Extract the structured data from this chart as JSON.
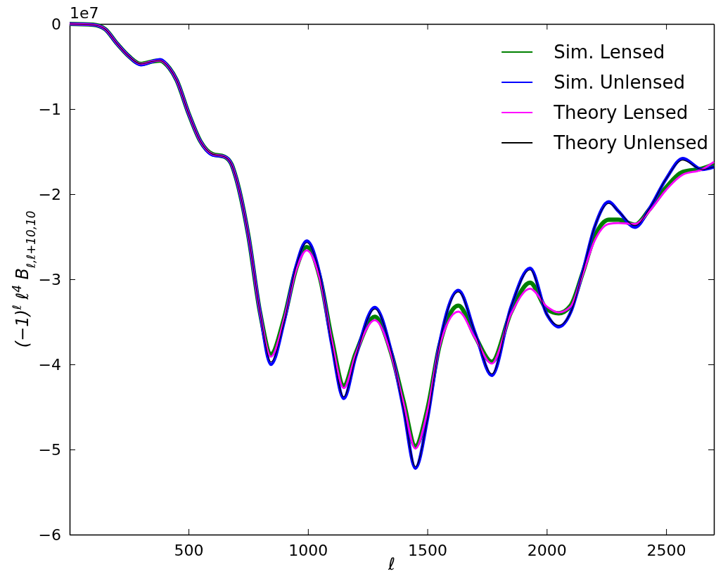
{
  "chart_data": {
    "type": "line",
    "xlabel": "ℓ",
    "ylabel": "(−1)$^{ℓ}$ ℓ$^{4}$ B$_{ℓ,ℓ+10,10}$",
    "annotations": [
      "1e7"
    ],
    "x": [
      2,
      100,
      150,
      200,
      250,
      300,
      350,
      380,
      420,
      450,
      500,
      550,
      600,
      650,
      680,
      700,
      750,
      800,
      845,
      900,
      950,
      995,
      1050,
      1100,
      1150,
      1200,
      1280,
      1350,
      1400,
      1450,
      1500,
      1550,
      1630,
      1700,
      1770,
      1850,
      1930,
      2000,
      2050,
      2100,
      2150,
      2200,
      2260,
      2300,
      2370,
      2430,
      2500,
      2570,
      2650,
      2700
    ],
    "series": [
      {
        "name": "Sim. Lensed",
        "color": "#008000",
        "values": [
          0,
          -0.01,
          -0.06,
          -0.23,
          -0.38,
          -0.47,
          -0.44,
          -0.43,
          -0.52,
          -0.66,
          -1.05,
          -1.38,
          -1.53,
          -1.56,
          -1.65,
          -1.82,
          -2.48,
          -3.4,
          -3.88,
          -3.46,
          -2.88,
          -2.62,
          -2.98,
          -3.7,
          -4.25,
          -3.87,
          -3.44,
          -3.88,
          -4.43,
          -4.96,
          -4.53,
          -3.79,
          -3.31,
          -3.67,
          -3.97,
          -3.39,
          -3.04,
          -3.35,
          -3.4,
          -3.31,
          -2.93,
          -2.5,
          -2.3,
          -2.3,
          -2.36,
          -2.18,
          -1.92,
          -1.74,
          -1.7,
          -1.65
        ]
      },
      {
        "name": "Sim. Unlensed",
        "color": "#0000ff",
        "values": [
          0,
          -0.01,
          -0.06,
          -0.23,
          -0.38,
          -0.48,
          -0.44,
          -0.42,
          -0.52,
          -0.66,
          -1.05,
          -1.38,
          -1.54,
          -1.56,
          -1.65,
          -1.82,
          -2.48,
          -3.4,
          -4.0,
          -3.5,
          -2.85,
          -2.55,
          -2.95,
          -3.77,
          -4.4,
          -3.91,
          -3.33,
          -3.86,
          -4.52,
          -5.22,
          -4.65,
          -3.77,
          -3.13,
          -3.63,
          -4.13,
          -3.33,
          -2.87,
          -3.41,
          -3.56,
          -3.39,
          -2.92,
          -2.39,
          -2.09,
          -2.2,
          -2.39,
          -2.17,
          -1.82,
          -1.58,
          -1.71,
          -1.68
        ]
      },
      {
        "name": "Theory Lensed",
        "color": "#ff00ff",
        "values": [
          0,
          -0.01,
          -0.06,
          -0.23,
          -0.38,
          -0.47,
          -0.44,
          -0.43,
          -0.52,
          -0.66,
          -1.05,
          -1.38,
          -1.53,
          -1.56,
          -1.65,
          -1.82,
          -2.48,
          -3.4,
          -3.91,
          -3.47,
          -2.9,
          -2.66,
          -3.0,
          -3.72,
          -4.28,
          -3.88,
          -3.48,
          -3.9,
          -4.45,
          -4.99,
          -4.55,
          -3.8,
          -3.38,
          -3.69,
          -3.99,
          -3.41,
          -3.11,
          -3.32,
          -3.39,
          -3.32,
          -2.95,
          -2.55,
          -2.35,
          -2.34,
          -2.35,
          -2.2,
          -1.95,
          -1.77,
          -1.71,
          -1.62
        ]
      },
      {
        "name": "Theory Unlensed",
        "color": "#000000",
        "values": [
          0,
          -0.01,
          -0.06,
          -0.23,
          -0.38,
          -0.47,
          -0.44,
          -0.43,
          -0.52,
          -0.66,
          -1.05,
          -1.38,
          -1.53,
          -1.56,
          -1.65,
          -1.82,
          -2.48,
          -3.4,
          -3.97,
          -3.5,
          -2.85,
          -2.57,
          -2.95,
          -3.77,
          -4.38,
          -3.91,
          -3.35,
          -3.86,
          -4.52,
          -5.2,
          -4.65,
          -3.77,
          -3.15,
          -3.63,
          -4.11,
          -3.33,
          -2.89,
          -3.41,
          -3.54,
          -3.39,
          -2.92,
          -2.39,
          -2.11,
          -2.2,
          -2.37,
          -2.17,
          -1.82,
          -1.6,
          -1.71,
          -1.68
        ]
      }
    ],
    "xlim": [
      2,
      2700
    ],
    "xticks": [
      500,
      1000,
      1500,
      2000,
      2500
    ],
    "ylim": [
      -6,
      0
    ],
    "yticks": [
      {
        "value": -6,
        "label": "−6"
      },
      {
        "value": -5,
        "label": "−5"
      },
      {
        "value": -4,
        "label": "−4"
      },
      {
        "value": -3,
        "label": "−3"
      },
      {
        "value": -2,
        "label": "−2"
      },
      {
        "value": -1,
        "label": "−1"
      },
      0
    ],
    "legend": "top right",
    "grid": false,
    "marker": "none",
    "line_style": "solid"
  }
}
